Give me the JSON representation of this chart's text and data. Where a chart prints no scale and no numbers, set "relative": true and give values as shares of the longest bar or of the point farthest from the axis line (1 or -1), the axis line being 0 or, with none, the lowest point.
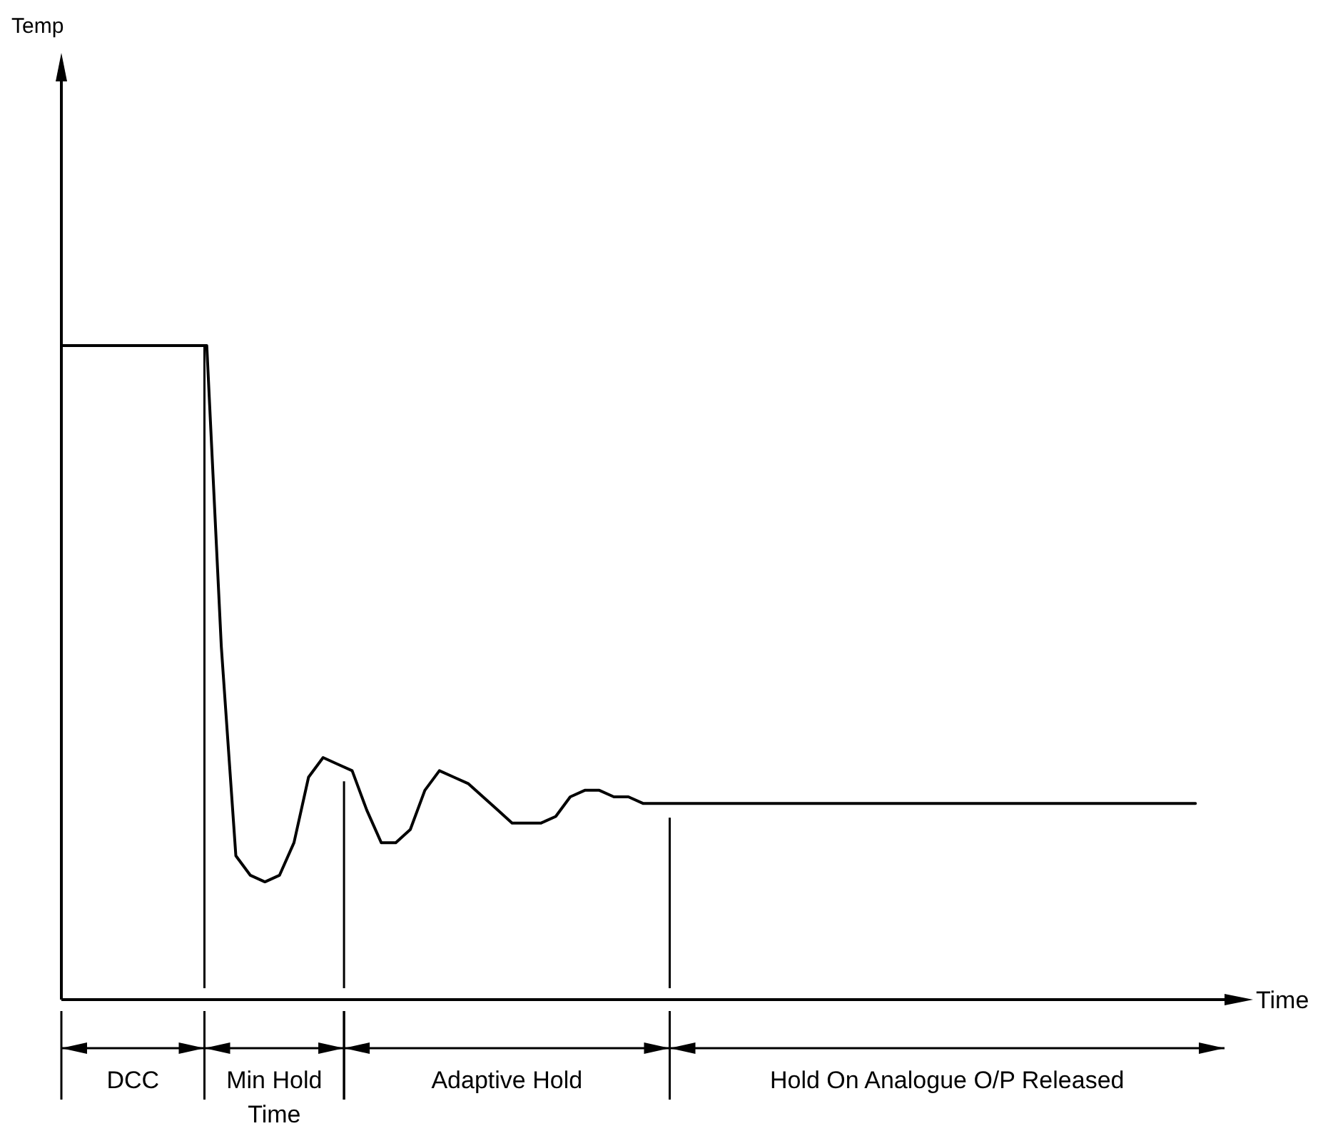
{
  "chart_data": {
    "type": "line",
    "relative": true,
    "xlabel": "Time",
    "marker": "none",
    "line_style": "solid",
    "categories": [
      null,
      null,
      null,
      null,
      null,
      null,
      null,
      null,
      null,
      null,
      null,
      null,
      null,
      null,
      null,
      null,
      null,
      null,
      null,
      null,
      null,
      null,
      null,
      null,
      null,
      null,
      null,
      null,
      null,
      null,
      null,
      null,
      null,
      null,
      null,
      null,
      null,
      null,
      null,
      null,
      null,
      null,
      null,
      null,
      null,
      null,
      null,
      null,
      null,
      null,
      null,
      null,
      null,
      null,
      null,
      null,
      null,
      null,
      null,
      null,
      null,
      null,
      null,
      null,
      null,
      null,
      null,
      null,
      null,
      null,
      null,
      null,
      null,
      null,
      null,
      null,
      null,
      null,
      null,
      null,
      null
    ],
    "series": [
      {
        "color": "#000000",
        "values": [
          1,
          1,
          1,
          1,
          1,
          1,
          1,
          1,
          1,
          1,
          1,
          0.54,
          0.22,
          0.19,
          0.18,
          0.19,
          0.24,
          0.34,
          0.37,
          0.36,
          0.35,
          0.29,
          0.24,
          0.24,
          0.26,
          0.32,
          0.35,
          0.34,
          0.33,
          0.31,
          0.29,
          0.27,
          0.27,
          0.27,
          0.28,
          0.31,
          0.32,
          0.32,
          0.31,
          0.31,
          0.3,
          0.3,
          0.3,
          0.3,
          0.3,
          0.3,
          0.3,
          0.3,
          0.3,
          0.3,
          0.3,
          0.3,
          0.3,
          0.3,
          0.3,
          0.3,
          0.3,
          0.3,
          0.3,
          0.3,
          0.3,
          0.3,
          0.3,
          0.3,
          0.3,
          0.3,
          0.3,
          0.3,
          0.3,
          0.3,
          0.3,
          0.3,
          0.3,
          0.3,
          0.3,
          0.3,
          0.3,
          0.3,
          0.3,
          null,
          null
        ]
      }
    ],
    "annotations": [
      "Temp",
      "DCC",
      "Min Hold Time",
      "Adaptive Hold",
      "Hold On Analogue O/P Released"
    ]
  }
}
